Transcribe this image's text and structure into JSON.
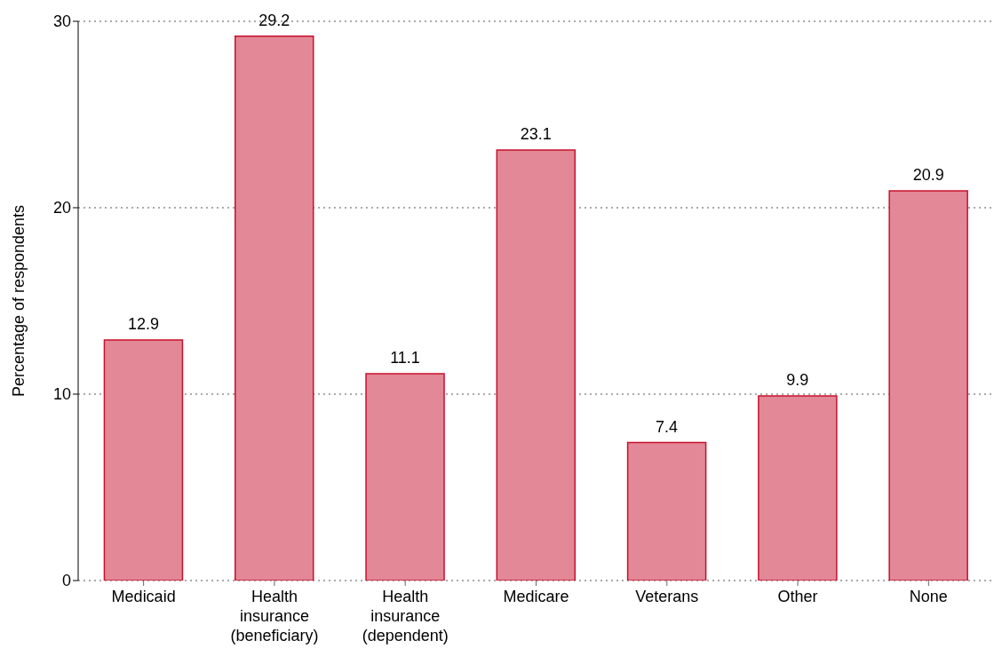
{
  "chart_data": {
    "type": "bar",
    "ylabel": "Percentage of respondents",
    "categories": [
      "Medicaid",
      "Health insurance (beneficiary)",
      "Health insurance (dependent)",
      "Medicare",
      "Veterans",
      "Other",
      "None"
    ],
    "values": [
      12.9,
      29.2,
      11.1,
      23.1,
      7.4,
      9.9,
      20.9
    ],
    "color": "#e38896",
    "ylim": [
      0,
      30
    ],
    "yticks": [
      0,
      10,
      20,
      30
    ],
    "grid": "y",
    "data_labels": true
  }
}
